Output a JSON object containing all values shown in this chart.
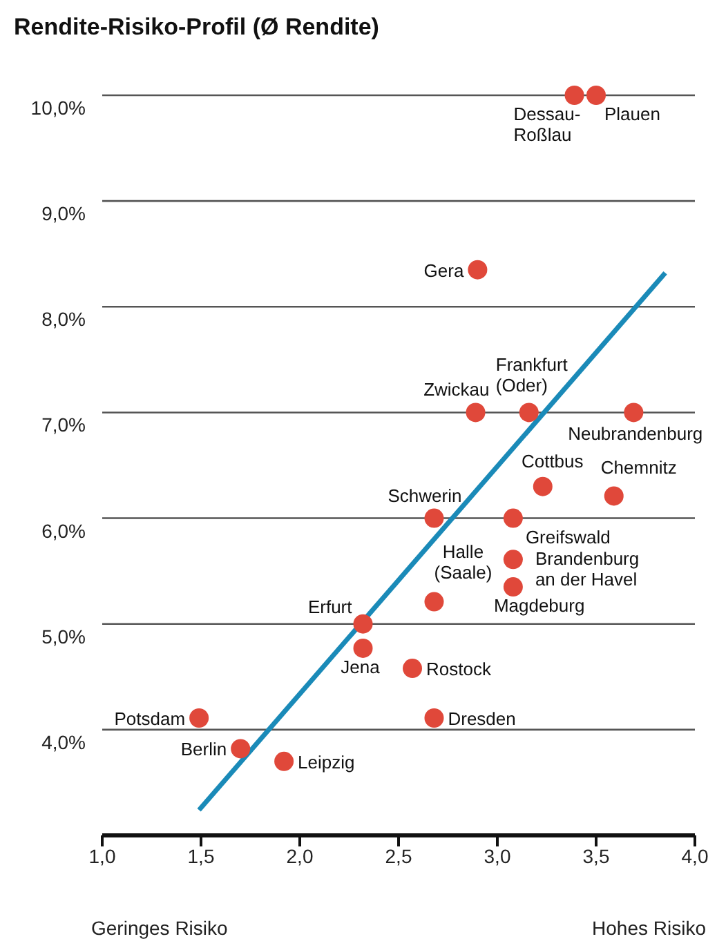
{
  "chart_data": {
    "type": "scatter",
    "title": "Rendite-Risiko-Profil (Ø Rendite)",
    "xlim": [
      1.0,
      4.0
    ],
    "xticks": [
      {
        "value": 1.0,
        "label": "1,0"
      },
      {
        "value": 1.5,
        "label": "1,5"
      },
      {
        "value": 2.0,
        "label": "2,0"
      },
      {
        "value": 2.5,
        "label": "2,5"
      },
      {
        "value": 3.0,
        "label": "3,0"
      },
      {
        "value": 3.5,
        "label": "3,5"
      },
      {
        "value": 4.0,
        "label": "4,0"
      }
    ],
    "ylim": [
      3.0,
      10.0
    ],
    "yticks": [
      {
        "value": 4,
        "label": "4,0%"
      },
      {
        "value": 5,
        "label": "5,0%"
      },
      {
        "value": 6,
        "label": "6,0%"
      },
      {
        "value": 7,
        "label": "7,0%"
      },
      {
        "value": 8,
        "label": "8,0%"
      },
      {
        "value": 9,
        "label": "9,0%"
      },
      {
        "value": 10,
        "label": "10,0%"
      }
    ],
    "grid": "y",
    "series": [
      {
        "marker": "circle",
        "color": "#e0483a",
        "x": [
          3.39,
          3.5,
          2.9,
          2.89,
          3.16,
          3.69,
          3.23,
          3.59,
          2.68,
          3.08,
          3.08,
          3.08,
          2.68,
          2.32,
          2.32,
          2.57,
          2.68,
          1.49,
          1.7,
          1.92
        ],
        "values": [
          10.0,
          10.0,
          8.35,
          7.0,
          7.0,
          7.0,
          6.3,
          6.21,
          6.0,
          6.0,
          5.61,
          5.35,
          5.21,
          5.0,
          4.77,
          4.58,
          4.11,
          4.11,
          3.82,
          3.7
        ]
      },
      {
        "type": "line",
        "marker": "none",
        "color": "#1a8ab8",
        "line_style": "solid",
        "x": [
          1.49,
          3.85
        ],
        "values": [
          3.24,
          8.32
        ]
      }
    ],
    "annotations": [
      "Geringes Risiko",
      "Hohes Risiko",
      {
        "text": "Dessau-Roßlau",
        "x": 3.39,
        "y": 10.0
      },
      {
        "text": "Plauen",
        "x": 3.5,
        "y": 10.0
      },
      {
        "text": "Gera",
        "x": 2.9,
        "y": 8.35
      },
      {
        "text": "Zwickau",
        "x": 2.89,
        "y": 7.0
      },
      {
        "text": "Frankfurt (Oder)",
        "x": 3.16,
        "y": 7.0
      },
      {
        "text": "Neubrandenburg",
        "x": 3.69,
        "y": 7.0
      },
      {
        "text": "Cottbus",
        "x": 3.23,
        "y": 6.3
      },
      {
        "text": "Chemnitz",
        "x": 3.59,
        "y": 6.21
      },
      {
        "text": "Schwerin",
        "x": 2.68,
        "y": 6.0
      },
      {
        "text": "Greifswald",
        "x": 3.08,
        "y": 6.0
      },
      {
        "text": "Brandenburg an der Havel",
        "x": 3.08,
        "y": 5.61
      },
      {
        "text": "Magdeburg",
        "x": 3.08,
        "y": 5.35
      },
      {
        "text": "Halle (Saale)",
        "x": 2.68,
        "y": 5.21
      },
      {
        "text": "Erfurt",
        "x": 2.32,
        "y": 5.0
      },
      {
        "text": "Jena",
        "x": 2.32,
        "y": 4.77
      },
      {
        "text": "Rostock",
        "x": 2.57,
        "y": 4.58
      },
      {
        "text": "Dresden",
        "x": 2.68,
        "y": 4.11
      },
      {
        "text": "Potsdam",
        "x": 1.49,
        "y": 4.11
      },
      {
        "text": "Berlin",
        "x": 1.7,
        "y": 3.82
      },
      {
        "text": "Leipzig",
        "x": 1.92,
        "y": 3.7
      }
    ]
  }
}
